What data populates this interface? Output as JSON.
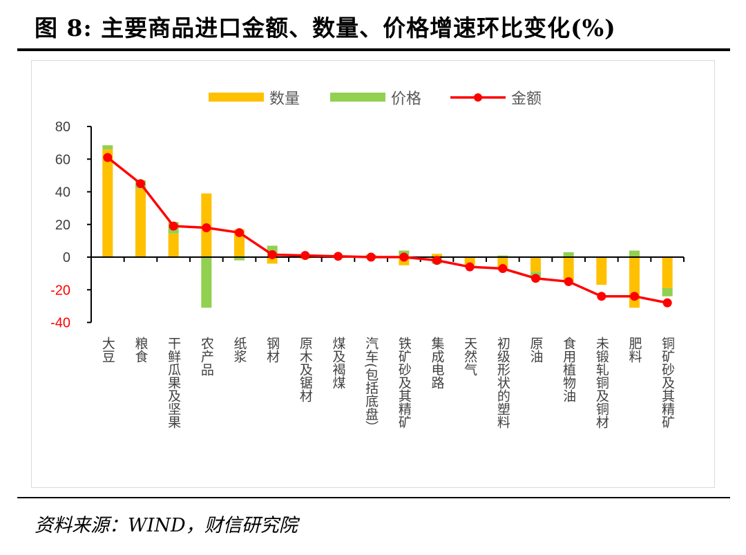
{
  "title": "图 8: 主要商品进口金额、数量、价格增速环比变化(%)",
  "source": "资料来源：WIND，财信研究院",
  "colors": {
    "quantity": "#FFC000",
    "price": "#92D050",
    "amount": "#FF0000"
  },
  "chart_data": {
    "type": "bar",
    "subtype": "stacked bar + line",
    "title": "主要商品进口金额、数量、价格增速环比变化(%)",
    "xlabel": "",
    "ylabel": "",
    "ylim": [
      -40,
      80
    ],
    "yticks": [
      "80",
      "60",
      "40",
      "20",
      "0",
      "-20",
      "-40"
    ],
    "ytick_values": [
      80,
      60,
      40,
      20,
      0,
      -20,
      -40
    ],
    "legend": [
      "数量",
      "价格",
      "金额"
    ],
    "legend_position": "top-center",
    "categories": [
      "大豆",
      "粮食",
      "干鲜瓜果及坚果",
      "农产品",
      "纸浆",
      "钢材",
      "原木及锯材",
      "煤及褐煤",
      "汽车(包括底盘）",
      "铁矿砂及其精矿",
      "集成电路",
      "天然气",
      "初级形状的塑料",
      "原油",
      "食用植物油",
      "未锻轧铜及铜材",
      "肥料",
      "铜矿砂及其精矿"
    ],
    "series": [
      {
        "name": "数量",
        "kind": "bar",
        "values": [
          66,
          42,
          14.5,
          39,
          17,
          -4,
          -1,
          0.5,
          -1,
          -5,
          2,
          -5,
          -8,
          -9,
          -15,
          -17,
          -31,
          -19
        ]
      },
      {
        "name": "价格",
        "kind": "bar",
        "values": [
          2.5,
          5,
          7,
          -31,
          -2,
          7,
          1.5,
          0.5,
          1.5,
          4,
          -4,
          0,
          1,
          -4,
          3,
          0,
          4,
          -5
        ]
      },
      {
        "name": "金额",
        "kind": "line",
        "values": [
          61,
          45,
          19,
          18,
          15,
          1.5,
          1,
          0.5,
          0,
          0,
          -2,
          -6,
          -7,
          -13,
          -15,
          -24,
          -24,
          -28
        ]
      }
    ]
  }
}
